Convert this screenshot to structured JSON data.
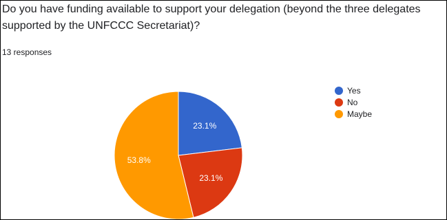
{
  "question": {
    "title": "Do you have funding available to support your delegation (beyond the three delegates supported by the UNFCCC Secretariat)?",
    "responses": "13 responses"
  },
  "chart_data": {
    "type": "pie",
    "labels": [
      "Yes",
      "No",
      "Maybe"
    ],
    "values": [
      23.1,
      23.1,
      53.8
    ],
    "value_labels": [
      "23.1%",
      "23.1%",
      "53.8%"
    ],
    "colors": [
      "#3366cc",
      "#dc3912",
      "#ff9900"
    ],
    "legend_placement": "right"
  }
}
